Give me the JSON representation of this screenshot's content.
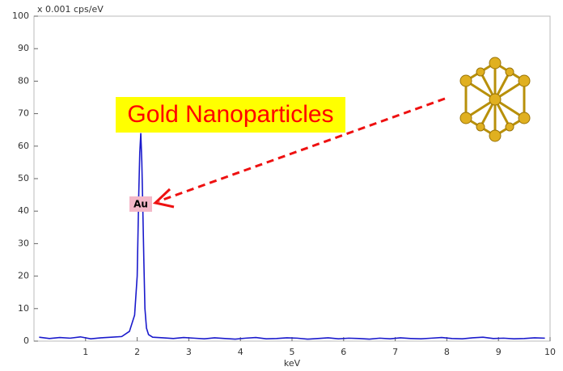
{
  "chart_data": {
    "type": "line",
    "y_unit_label": "x 0.001 cps/eV",
    "x_label": "keV",
    "annotations": {
      "title_box": "Gold Nanoparticles",
      "peak_label": "Au"
    },
    "x": [
      0.1,
      0.3,
      0.5,
      0.7,
      0.9,
      1.1,
      1.3,
      1.5,
      1.7,
      1.85,
      1.95,
      2.0,
      2.03,
      2.05,
      2.07,
      2.09,
      2.11,
      2.13,
      2.15,
      2.18,
      2.22,
      2.3,
      2.5,
      2.7,
      2.9,
      3.1,
      3.3,
      3.5,
      3.7,
      3.9,
      4.1,
      4.3,
      4.5,
      4.7,
      4.9,
      5.1,
      5.3,
      5.5,
      5.7,
      5.9,
      6.1,
      6.3,
      6.5,
      6.7,
      6.9,
      7.1,
      7.3,
      7.5,
      7.7,
      7.9,
      8.1,
      8.3,
      8.5,
      8.7,
      8.9,
      9.1,
      9.3,
      9.5,
      9.7,
      9.9
    ],
    "series": [
      {
        "color": "#1a1acc",
        "values": [
          1.2,
          0.8,
          1.1,
          0.9,
          1.3,
          0.7,
          1.0,
          1.2,
          1.4,
          3,
          8,
          20,
          45,
          58,
          64,
          55,
          40,
          24,
          10,
          4,
          2,
          1.2,
          1.0,
          0.8,
          1.1,
          0.9,
          0.7,
          1.0,
          0.8,
          0.6,
          0.9,
          1.1,
          0.7,
          0.8,
          1.0,
          0.9,
          0.6,
          0.8,
          1.0,
          0.7,
          0.9,
          0.8,
          0.6,
          0.9,
          0.7,
          1.0,
          0.8,
          0.7,
          0.9,
          1.1,
          0.8,
          0.7,
          1.0,
          1.2,
          0.8,
          0.9,
          0.7,
          0.8,
          1.0,
          0.9
        ]
      }
    ],
    "xlim": [
      0,
      10
    ],
    "xticks": [
      1,
      2,
      3,
      4,
      5,
      6,
      7,
      8,
      9,
      10
    ],
    "ylim": [
      0,
      100
    ],
    "yticks": [
      0,
      10,
      20,
      30,
      40,
      50,
      60,
      70,
      80,
      90,
      100
    ],
    "grid": false
  }
}
